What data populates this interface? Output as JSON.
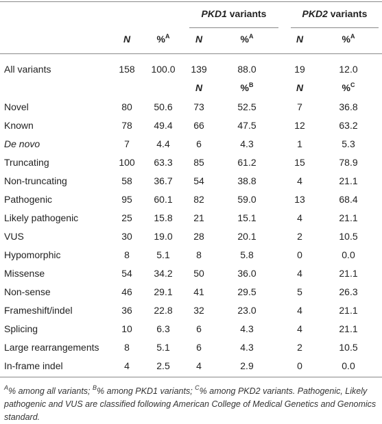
{
  "groups": [
    {
      "gene": "PKD1",
      "label": "variants"
    },
    {
      "gene": "PKD2",
      "label": "variants"
    }
  ],
  "header": [
    {
      "n": "N",
      "pct": "%",
      "sup": "A"
    },
    {
      "n": "N",
      "pct": "%",
      "sup": "A"
    },
    {
      "n": "N",
      "pct": "%",
      "sup": "A"
    }
  ],
  "subheader": [
    {
      "n": "N",
      "pct": "%",
      "sup": "B"
    },
    {
      "n": "N",
      "pct": "%",
      "sup": "C"
    }
  ],
  "rows": [
    [
      "All variants",
      "158",
      "100.0",
      "139",
      "88.0",
      "19",
      "12.0"
    ],
    [
      "Novel",
      "80",
      "50.6",
      "73",
      "52.5",
      "7",
      "36.8"
    ],
    [
      "Known",
      "78",
      "49.4",
      "66",
      "47.5",
      "12",
      "63.2"
    ],
    [
      "De novo",
      "7",
      "4.4",
      "6",
      "4.3",
      "1",
      "5.3"
    ],
    [
      "Truncating",
      "100",
      "63.3",
      "85",
      "61.2",
      "15",
      "78.9"
    ],
    [
      "Non-truncating",
      "58",
      "36.7",
      "54",
      "38.8",
      "4",
      "21.1"
    ],
    [
      "Pathogenic",
      "95",
      "60.1",
      "82",
      "59.0",
      "13",
      "68.4"
    ],
    [
      "Likely pathogenic",
      "25",
      "15.8",
      "21",
      "15.1",
      "4",
      "21.1"
    ],
    [
      "VUS",
      "30",
      "19.0",
      "28",
      "20.1",
      "2",
      "10.5"
    ],
    [
      "Hypomorphic",
      "8",
      "5.1",
      "8",
      "5.8",
      "0",
      "0.0"
    ],
    [
      "Missense",
      "54",
      "34.2",
      "50",
      "36.0",
      "4",
      "21.1"
    ],
    [
      "Non-sense",
      "46",
      "29.1",
      "41",
      "29.5",
      "5",
      "26.3"
    ],
    [
      "Frameshift/indel",
      "36",
      "22.8",
      "32",
      "23.0",
      "4",
      "21.1"
    ],
    [
      "Splicing",
      "10",
      "6.3",
      "6",
      "4.3",
      "4",
      "21.1"
    ],
    [
      "Large rearrangements",
      "8",
      "5.1",
      "6",
      "4.3",
      "2",
      "10.5"
    ],
    [
      "In-frame indel",
      "4",
      "2.5",
      "4",
      "2.9",
      "0",
      "0.0"
    ]
  ],
  "notes": [
    {
      "sup": "A",
      "text": "% among all variants;"
    },
    {
      "sup": "B",
      "text": "% among PKD1 variants;"
    },
    {
      "sup": "C",
      "text": "% among PKD2 variants. Pathogenic, Likely pathogenic and VUS are classified following American College of Medical Genetics and Genomics standard."
    }
  ]
}
